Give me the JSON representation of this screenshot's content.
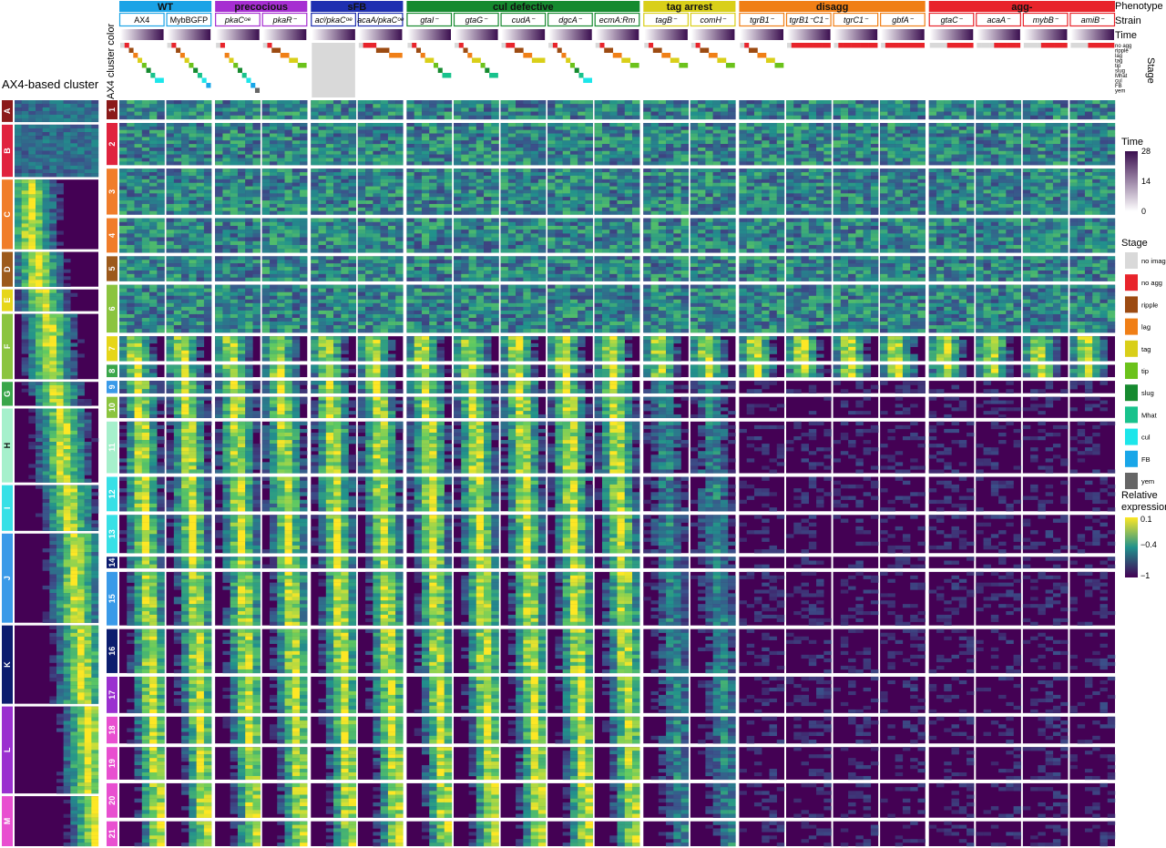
{
  "row_headers": {
    "phenotype": "Phenotype",
    "strain": "Strain",
    "time": "Time",
    "stage": "Stage",
    "ax4_color": "AX4 cluster color",
    "ax4_clusters": "AX4-based cluster"
  },
  "stage_row_labels": [
    "no agg",
    "ripple",
    "lag",
    "tag",
    "tip",
    "slug",
    "Mhat",
    "cul",
    "FB",
    "yem"
  ],
  "chart_data": {
    "type": "heatmap",
    "phenotypes": [
      {
        "name": "WT",
        "color": "#1ba3e6",
        "strains": [
          "AX4",
          "MybBGFP"
        ]
      },
      {
        "name": "precocious",
        "color": "#a62ed1",
        "strains": [
          "pkaCᵒᵉ",
          "pkaR⁻"
        ]
      },
      {
        "name": "sFB",
        "color": "#1f2fb0",
        "strains": [
          "acˡ/pkaCᵒᵉ",
          "acaA/pkaCᵒᵉ"
        ]
      },
      {
        "name": "cul defective",
        "color": "#168a2f",
        "strains": [
          "gtaI⁻",
          "gtaG⁻",
          "cudA⁻",
          "dgcA⁻",
          "ecmA:Rm"
        ]
      },
      {
        "name": "tag arrest",
        "color": "#d9cf19",
        "strains": [
          "tagB⁻",
          "comH⁻"
        ]
      },
      {
        "name": "disagg",
        "color": "#f07f16",
        "strains": [
          "tgrB1⁻",
          "tgrB1⁻C1⁻",
          "tgrC1⁻",
          "gbfA⁻"
        ]
      },
      {
        "name": "agg-",
        "color": "#e8242b",
        "strains": [
          "gtaC⁻",
          "acaA⁻",
          "mybB⁻",
          "amiB⁻"
        ]
      }
    ],
    "ax4_clusters": [
      {
        "label": "A",
        "color": "#8b1a1a"
      },
      {
        "label": "B",
        "color": "#e0233e"
      },
      {
        "label": "C",
        "color": "#f07d2a"
      },
      {
        "label": "D",
        "color": "#9c5a1c"
      },
      {
        "label": "E",
        "color": "#e6d619"
      },
      {
        "label": "F",
        "color": "#8bc43f"
      },
      {
        "label": "G",
        "color": "#3aa64a"
      },
      {
        "label": "H",
        "color": "#a6f0cc"
      },
      {
        "label": "I",
        "color": "#38e0e6"
      },
      {
        "label": "J",
        "color": "#3a9ae8"
      },
      {
        "label": "K",
        "color": "#0c1c6e"
      },
      {
        "label": "L",
        "color": "#9a30cf"
      },
      {
        "label": "M",
        "color": "#e84fd0"
      }
    ],
    "gene_clusters": [
      {
        "label": "1",
        "color": "#8b1a1a",
        "rel": 1.0
      },
      {
        "label": "2",
        "color": "#e0233e",
        "rel": 2.2
      },
      {
        "label": "3",
        "color": "#f07d2a",
        "rel": 2.4
      },
      {
        "label": "4",
        "color": "#f07d2a",
        "rel": 1.8
      },
      {
        "label": "5",
        "color": "#9c5a1c",
        "rel": 1.3
      },
      {
        "label": "6",
        "color": "#8bc43f",
        "rel": 2.5
      },
      {
        "label": "7",
        "color": "#e6d619",
        "rel": 1.3
      },
      {
        "label": "8",
        "color": "#3aa64a",
        "rel": 0.65
      },
      {
        "label": "9",
        "color": "#3a9ae8",
        "rel": 0.65
      },
      {
        "label": "10",
        "color": "#8bc43f",
        "rel": 1.1
      },
      {
        "label": "11",
        "color": "#a6f0cc",
        "rel": 2.7
      },
      {
        "label": "12",
        "color": "#38e0e6",
        "rel": 1.8
      },
      {
        "label": "13",
        "color": "#38e0e6",
        "rel": 2.0
      },
      {
        "label": "14",
        "color": "#0c1c6e",
        "rel": 0.6
      },
      {
        "label": "15",
        "color": "#3a9ae8",
        "rel": 2.8
      },
      {
        "label": "16",
        "color": "#0c1c6e",
        "rel": 2.3
      },
      {
        "label": "17",
        "color": "#9a30cf",
        "rel": 1.9
      },
      {
        "label": "18",
        "color": "#e84fd0",
        "rel": 1.4
      },
      {
        "label": "19",
        "color": "#e84fd0",
        "rel": 1.7
      },
      {
        "label": "20",
        "color": "#e84fd0",
        "rel": 1.8
      },
      {
        "label": "21",
        "color": "#e84fd0",
        "rel": 1.3
      }
    ],
    "legend_time": {
      "title": "Time",
      "ticks": [
        0,
        14,
        28
      ],
      "color_low": "#ffffff",
      "color_high": "#3b0f4f"
    },
    "legend_stage": {
      "title": "Stage",
      "items": [
        {
          "name": "no image",
          "color": "#d9d9d9"
        },
        {
          "name": "no agg",
          "color": "#e8242b"
        },
        {
          "name": "ripple",
          "color": "#9c4b12"
        },
        {
          "name": "lag",
          "color": "#f07f16"
        },
        {
          "name": "tag",
          "color": "#d9cf19"
        },
        {
          "name": "tip",
          "color": "#6bc21b"
        },
        {
          "name": "slug",
          "color": "#168a2f"
        },
        {
          "name": "Mhat",
          "color": "#18c28c"
        },
        {
          "name": "cul",
          "color": "#1de6ea"
        },
        {
          "name": "FB",
          "color": "#19a6e8"
        },
        {
          "name": "yem",
          "color": "#666666"
        }
      ]
    },
    "legend_expression": {
      "title_lines": [
        "Relative",
        "expression"
      ],
      "ticks": [
        0.1,
        -0.4,
        -1
      ],
      "colors": [
        "#fde725",
        "#21918c",
        "#440154"
      ]
    }
  }
}
